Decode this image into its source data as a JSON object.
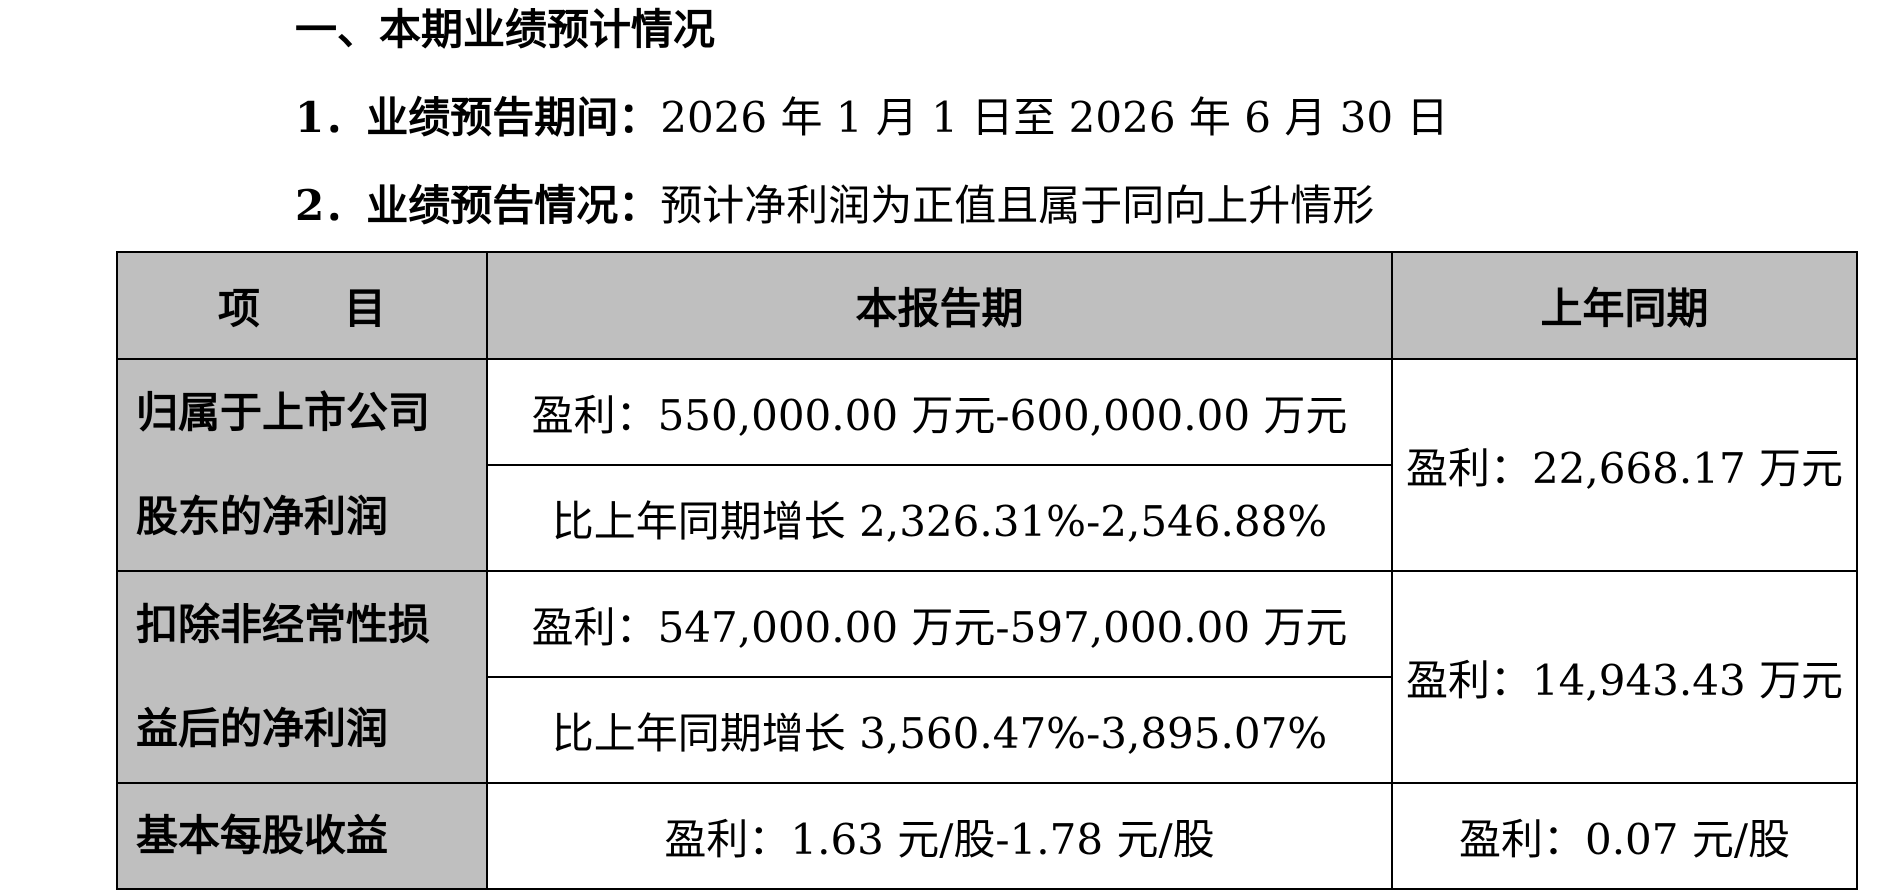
{
  "section": {
    "heading": "一、本期业绩预计情况",
    "item1_label": "1．业绩预告期间：",
    "item1_value": "2026 年 1 月 1 日至 2026 年 6 月 30 日",
    "item2_label": "2．业绩预告情况：",
    "item2_value": "预计净利润为正值且属于同向上升情形"
  },
  "table": {
    "headers": {
      "item_a": "项",
      "item_b": "目",
      "current": "本报告期",
      "prior": "上年同期"
    },
    "rows": [
      {
        "label_line1": "归属于上市公司",
        "label_line2": "股东的净利润",
        "current_profit": "盈利：550,000.00 万元-600,000.00 万元",
        "current_growth": "比上年同期增长 2,326.31%-2,546.88%",
        "prior": "盈利：22,668.17 万元"
      },
      {
        "label_line1": "扣除非经常性损",
        "label_line2": "益后的净利润",
        "current_profit": "盈利：547,000.00 万元-597,000.00 万元",
        "current_growth": "比上年同期增长 3,560.47%-3,895.07%",
        "prior": "盈利：14,943.43 万元"
      }
    ],
    "eps": {
      "label": "基本每股收益",
      "current": "盈利：1.63 元/股-1.78 元/股",
      "prior": "盈利：0.07 元/股"
    }
  }
}
